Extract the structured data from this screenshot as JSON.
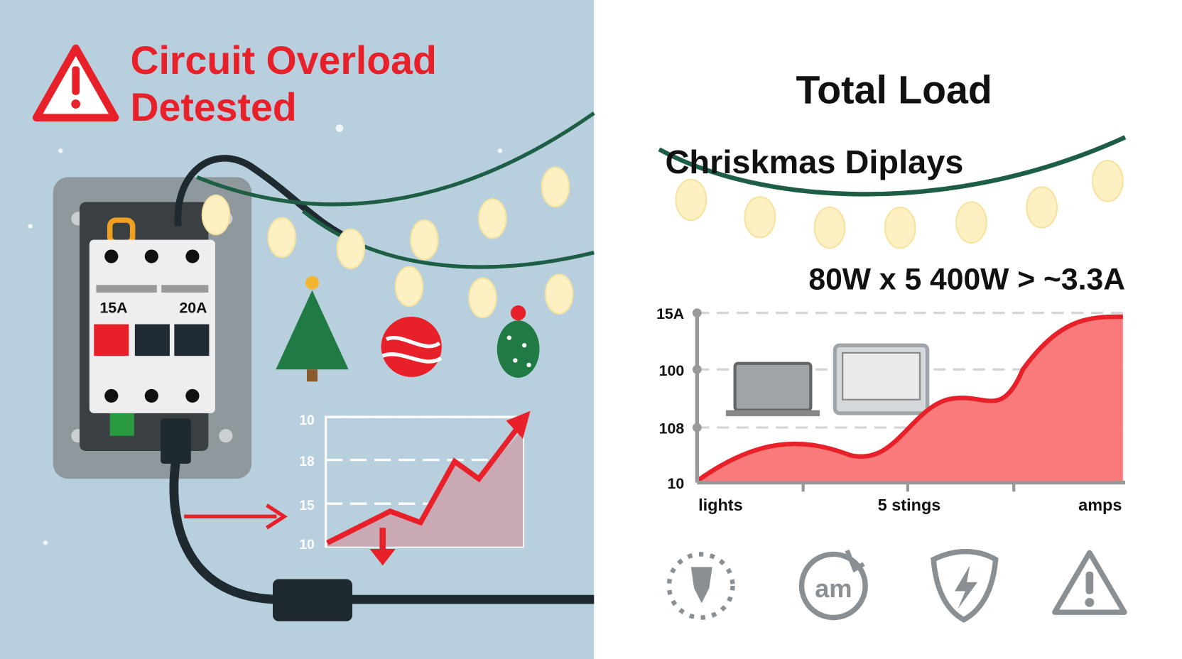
{
  "left": {
    "alert": {
      "title_lines": [
        "Circuit Overload",
        "Detested"
      ]
    },
    "breaker_labels": [
      "15A",
      "20A"
    ],
    "mini_chart_tick_labels": [
      "10",
      "18",
      "15",
      "10"
    ]
  },
  "right": {
    "title": "Total Load",
    "subtitle": "Chriskmas Diplays",
    "formula": "80W x 5 400W > ~3.3A",
    "chart_tick_labels": [
      "15A",
      "100",
      "108",
      "10"
    ],
    "chart_x_labels": [
      "lights",
      "5 stings",
      "amps"
    ],
    "icon_text": "am"
  }
}
